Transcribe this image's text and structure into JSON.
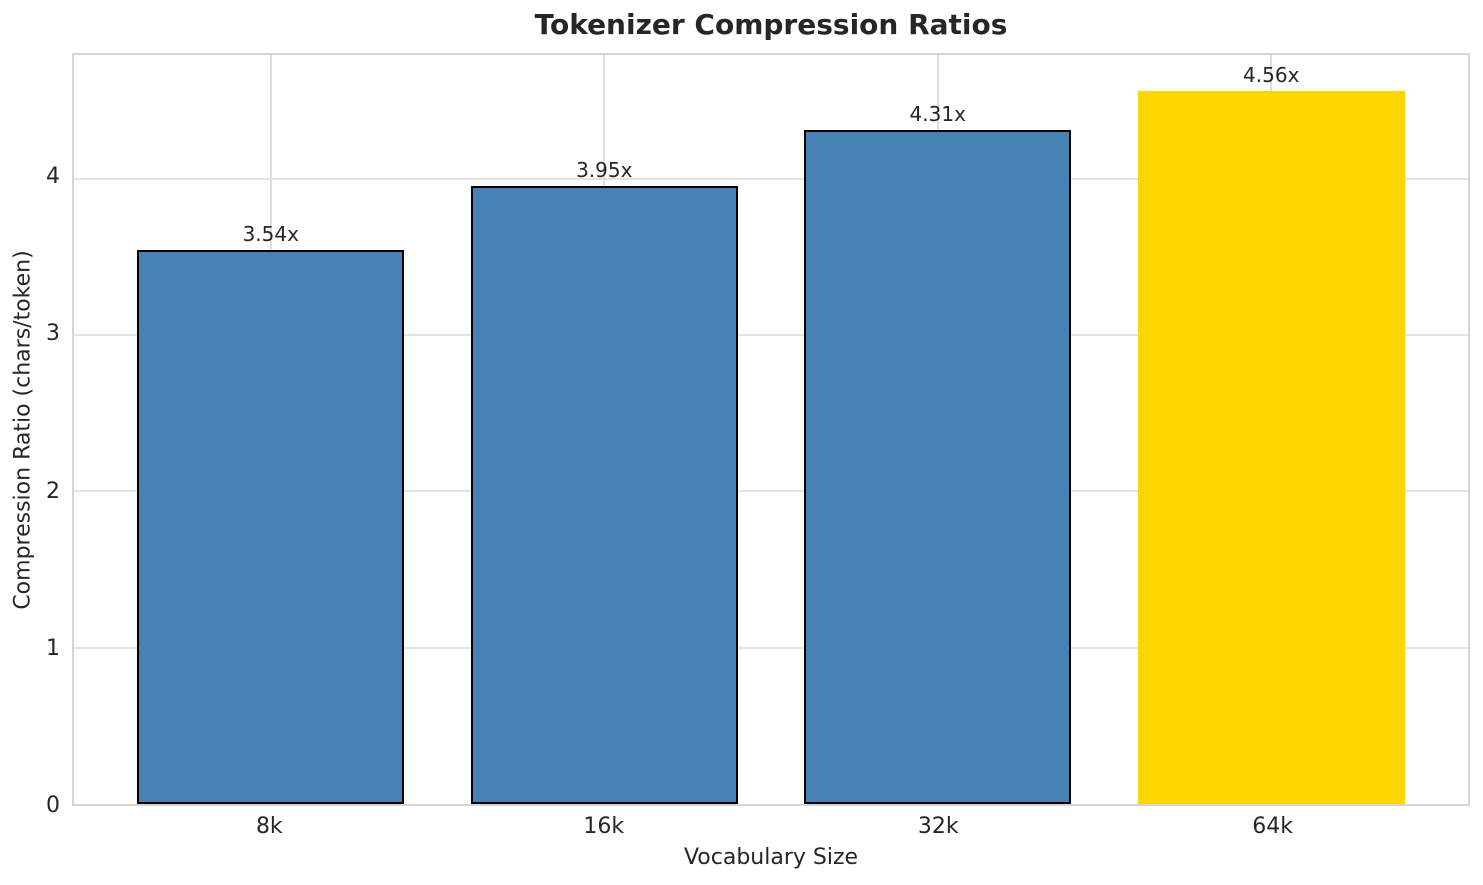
{
  "chart_data": {
    "type": "bar",
    "title": "Tokenizer Compression Ratios",
    "xlabel": "Vocabulary Size",
    "ylabel": "Compression Ratio (chars/token)",
    "categories": [
      "8k",
      "16k",
      "32k",
      "64k"
    ],
    "values": [
      3.54,
      3.95,
      4.31,
      4.56
    ],
    "bar_labels": [
      "3.54x",
      "3.95x",
      "4.31x",
      "4.56x"
    ],
    "yticks": [
      0,
      1,
      2,
      3,
      4
    ],
    "ylim": [
      0,
      4.79
    ],
    "grid": true,
    "legend_position": "none",
    "highlight_index": 3,
    "bar_colors": [
      "#4682b4",
      "#4682b4",
      "#4682b4",
      "#ffd700"
    ],
    "bar_edge_colors": [
      "#000000",
      "#000000",
      "#000000",
      "none"
    ],
    "colors": {
      "bar_default": "#4682b4",
      "bar_highlight": "#ffd700",
      "bar_edge": "#000000",
      "grid": "#e4e4e4",
      "spine": "#d5d5d5",
      "text": "#262626"
    }
  }
}
